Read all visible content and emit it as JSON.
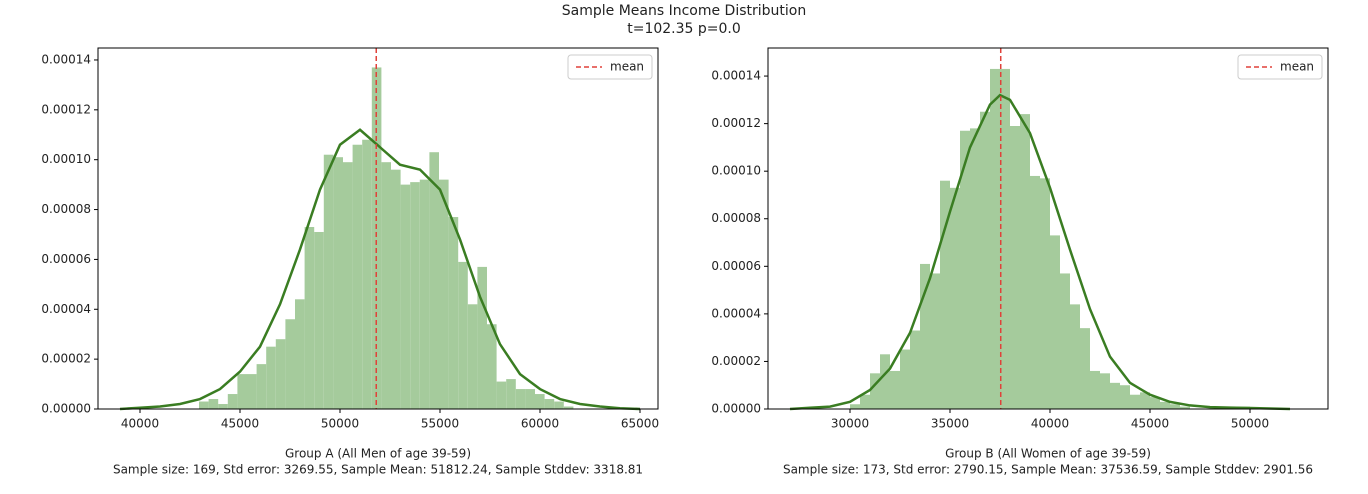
{
  "suptitle": "Sample Means Income Distribution",
  "subtitle": "t=102.35 p=0.0",
  "chart_data": [
    {
      "type": "histogram",
      "xlabel": "Group A (All Men of age 39-59)",
      "xlabel_detail": "Sample size: 169, Std error: 3269.55, Sample Mean: 51812.24, Sample Stddev: 3318.81",
      "bins": [
        42950,
        43430,
        43910,
        44390,
        44870,
        45350,
        45830,
        46310,
        46790,
        47270,
        47750,
        48230,
        48710,
        49190,
        49670,
        50150,
        50630,
        51110,
        51590,
        52070,
        52550,
        53030,
        53510,
        53990,
        54470,
        54950,
        55430,
        55910,
        56390,
        56870,
        57350,
        57830,
        58310,
        58790,
        59270,
        59750,
        60230,
        60710,
        61190,
        61670
      ],
      "values": [
        3e-06,
        4e-06,
        2e-06,
        6e-06,
        1.4e-05,
        1.4e-05,
        1.8e-05,
        2.5e-05,
        2.8e-05,
        3.6e-05,
        4.4e-05,
        7.3e-05,
        7.1e-05,
        0.000102,
        0.000101,
        9.9e-05,
        0.000106,
        0.000108,
        0.000137,
        9.9e-05,
        9.6e-05,
        9e-05,
        9.1e-05,
        9.2e-05,
        0.000103,
        9.2e-05,
        7.7e-05,
        5.9e-05,
        4.2e-05,
        5.7e-05,
        3.4e-05,
        1.1e-05,
        1.2e-05,
        8e-06,
        8e-06,
        6e-06,
        4e-06,
        3e-06,
        1e-06
      ],
      "color": "#a5cb9c",
      "kde": {
        "color": "#3a7d22",
        "x": [
          39000,
          40000,
          41000,
          42000,
          43000,
          44000,
          45000,
          46000,
          47000,
          48000,
          49000,
          50000,
          51000,
          52000,
          53000,
          54000,
          55000,
          56000,
          57000,
          58000,
          59000,
          60000,
          61000,
          62000,
          63000,
          64000,
          65000
        ],
        "y": [
          0,
          5e-07,
          1e-06,
          2e-06,
          4e-06,
          8e-06,
          1.5e-05,
          2.5e-05,
          4.2e-05,
          6.4e-05,
          8.8e-05,
          0.000106,
          0.000112,
          0.000105,
          9.8e-05,
          9.6e-05,
          8.8e-05,
          6.8e-05,
          4.5e-05,
          2.6e-05,
          1.4e-05,
          8e-06,
          4e-06,
          2e-06,
          1e-06,
          3e-07,
          0
        ]
      },
      "mean": {
        "name": "mean",
        "value": 51812.24,
        "color": "#e0413a"
      },
      "legend": "upper right",
      "xlim": [
        37900,
        65900
      ],
      "ylim": [
        0,
        0.0001448
      ],
      "xticks": [
        40000,
        45000,
        50000,
        55000,
        60000,
        65000
      ],
      "yticks": [
        {
          "value": 0,
          "label": "0.00000"
        },
        {
          "value": 2e-05,
          "label": "0.00002"
        },
        {
          "value": 4e-05,
          "label": "0.00004"
        },
        {
          "value": 6e-05,
          "label": "0.00006"
        },
        {
          "value": 8e-05,
          "label": "0.00008"
        },
        {
          "value": 0.0001,
          "label": "0.00010"
        },
        {
          "value": 0.00012,
          "label": "0.00012"
        },
        {
          "value": 0.00014,
          "label": "0.00014"
        }
      ]
    },
    {
      "type": "histogram",
      "xlabel": "Group B (All Women of age 39-59)",
      "xlabel_detail": "Sample size: 173, Std error: 2790.15, Sample Mean: 37536.59, Sample Stddev: 2901.56",
      "bins": [
        30000,
        30500,
        31000,
        31500,
        32000,
        32500,
        33000,
        33500,
        34000,
        34500,
        35000,
        35500,
        36000,
        36500,
        37000,
        37500,
        38000,
        38500,
        39000,
        39500,
        40000,
        40500,
        41000,
        41500,
        42000,
        42500,
        43000,
        43500,
        44000,
        44500,
        45000,
        45500,
        46000,
        46500,
        47000,
        47500,
        48000,
        48500,
        49000,
        49500,
        50000
      ],
      "values": [
        2e-06,
        6e-06,
        1.5e-05,
        2.3e-05,
        1.6e-05,
        2.5e-05,
        3.3e-05,
        6.1e-05,
        5.7e-05,
        9.6e-05,
        9.3e-05,
        0.000117,
        0.000118,
        0.000125,
        0.000143,
        0.000143,
        0.000119,
        0.000124,
        9.8e-05,
        9.7e-05,
        7.3e-05,
        5.7e-05,
        4.4e-05,
        3.4e-05,
        1.6e-05,
        1.5e-05,
        1.1e-05,
        1e-05,
        6e-06,
        7e-06,
        5e-06,
        3e-06,
        2e-06,
        1e-06,
        0,
        0,
        0,
        0,
        1e-06,
        1e-06
      ],
      "color": "#a5cb9c",
      "kde": {
        "color": "#3a7d22",
        "x": [
          27000,
          28000,
          29000,
          30000,
          31000,
          32000,
          33000,
          34000,
          35000,
          36000,
          37000,
          37500,
          38000,
          39000,
          40000,
          41000,
          42000,
          43000,
          44000,
          45000,
          46000,
          47000,
          48000,
          49000,
          50000,
          51000,
          52000
        ],
        "y": [
          0,
          5e-07,
          1e-06,
          3e-06,
          8e-06,
          1.7e-05,
          3.2e-05,
          5.5e-05,
          8.3e-05,
          0.00011,
          0.000128,
          0.000132,
          0.00013,
          0.000116,
          9.3e-05,
          6.7e-05,
          4.2e-05,
          2.2e-05,
          1.1e-05,
          6e-06,
          3e-06,
          1.5e-06,
          8e-07,
          6e-07,
          4e-07,
          2e-07,
          0
        ]
      },
      "mean": {
        "name": "mean",
        "value": 37536.59,
        "color": "#e0413a"
      },
      "legend": "upper right",
      "xlim": [
        25900,
        53900
      ],
      "ylim": [
        0,
        0.0001518
      ],
      "xticks": [
        30000,
        35000,
        40000,
        45000,
        50000
      ],
      "yticks": [
        {
          "value": 0,
          "label": "0.00000"
        },
        {
          "value": 2e-05,
          "label": "0.00002"
        },
        {
          "value": 4e-05,
          "label": "0.00004"
        },
        {
          "value": 6e-05,
          "label": "0.00006"
        },
        {
          "value": 8e-05,
          "label": "0.00008"
        },
        {
          "value": 0.0001,
          "label": "0.00010"
        },
        {
          "value": 0.00012,
          "label": "0.00012"
        },
        {
          "value": 0.00014,
          "label": "0.00014"
        }
      ]
    }
  ]
}
